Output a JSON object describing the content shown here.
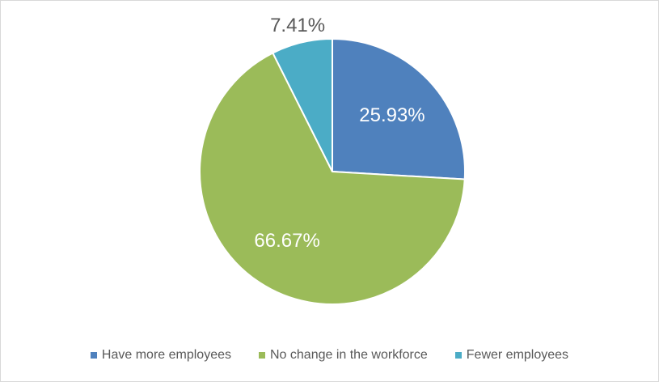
{
  "chart_data": {
    "type": "pie",
    "categories": [
      "Have more employees",
      "No change in the workforce",
      "Fewer employees"
    ],
    "values": [
      25.93,
      66.67,
      7.41
    ],
    "data_labels": [
      "25.93%",
      "66.67%",
      "7.41%"
    ],
    "colors": [
      "#4F81BD",
      "#9BBB59",
      "#4BACC6"
    ],
    "start_angle": "12 o'clock, clockwise",
    "legend_position": "bottom"
  }
}
